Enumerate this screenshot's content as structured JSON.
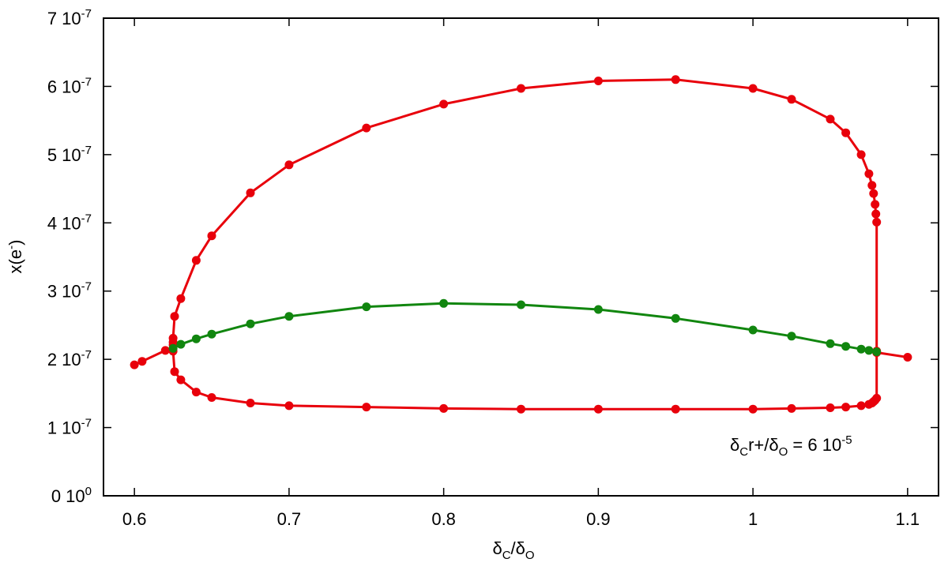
{
  "chart_data": {
    "type": "line",
    "xlabel": {
      "a": "δ",
      "a_sub": "C",
      "b": "/δ",
      "b_sub": "O"
    },
    "ylabel": {
      "text": "x(e",
      "sup": "-",
      "close": ")"
    },
    "xlim": [
      0.58,
      1.12
    ],
    "ylim": [
      0,
      7e-07
    ],
    "xticks": [
      {
        "value": 0.6,
        "label": "0.6"
      },
      {
        "value": 0.7,
        "label": "0.7"
      },
      {
        "value": 0.8,
        "label": "0.8"
      },
      {
        "value": 0.9,
        "label": "0.9"
      },
      {
        "value": 1.0,
        "label": "1"
      },
      {
        "value": 1.1,
        "label": "1.1"
      }
    ],
    "yticks": [
      {
        "value": 0,
        "mant": "0 10",
        "exp": "0"
      },
      {
        "value": 1e-07,
        "mant": "1 10",
        "exp": "-7"
      },
      {
        "value": 2e-07,
        "mant": "2 10",
        "exp": "-7"
      },
      {
        "value": 3e-07,
        "mant": "3 10",
        "exp": "-7"
      },
      {
        "value": 4e-07,
        "mant": "4 10",
        "exp": "-7"
      },
      {
        "value": 5e-07,
        "mant": "5 10",
        "exp": "-7"
      },
      {
        "value": 6e-07,
        "mant": "6 10",
        "exp": "-7"
      },
      {
        "value": 7e-07,
        "mant": "7 10",
        "exp": "-7"
      }
    ],
    "annotation": {
      "d1": "δ",
      "d1_sub": "C",
      "mid": "r+/δ",
      "d2_sub": "O",
      "eq": " = 6 10",
      "exp": "-5"
    },
    "grid": false,
    "legend": "none",
    "series": [
      {
        "color": "#e8000b",
        "points": [
          [
            0.6,
            1.92e-07
          ],
          [
            0.605,
            1.97e-07
          ],
          [
            0.62,
            2.13e-07
          ],
          [
            0.625,
            2.16e-07
          ],
          [
            0.625,
            2.21e-07
          ],
          [
            0.625,
            2.25e-07
          ],
          [
            0.625,
            2.31e-07
          ],
          [
            0.626,
            2.63e-07
          ],
          [
            0.63,
            2.89e-07
          ],
          [
            0.64,
            3.45e-07
          ],
          [
            0.65,
            3.81e-07
          ],
          [
            0.675,
            4.44e-07
          ],
          [
            0.7,
            4.85e-07
          ],
          [
            0.75,
            5.39e-07
          ],
          [
            0.8,
            5.74e-07
          ],
          [
            0.85,
            5.97e-07
          ],
          [
            0.9,
            6.08e-07
          ],
          [
            0.95,
            6.1e-07
          ],
          [
            1.0,
            5.97e-07
          ],
          [
            1.025,
            5.81e-07
          ],
          [
            1.05,
            5.52e-07
          ],
          [
            1.06,
            5.32e-07
          ],
          [
            1.07,
            5e-07
          ],
          [
            1.075,
            4.72e-07
          ],
          [
            1.077,
            4.55e-07
          ],
          [
            1.078,
            4.43e-07
          ],
          [
            1.079,
            4.27e-07
          ],
          [
            1.0795,
            4.13e-07
          ],
          [
            1.08,
            4.01e-07
          ],
          [
            1.08,
            2.12e-07
          ],
          [
            1.08,
            2.1e-07
          ],
          [
            1.1,
            2.03e-07
          ]
        ]
      },
      {
        "color": "#e8000b",
        "points": [
          [
            0.625,
            2.12e-07
          ],
          [
            0.626,
            1.82e-07
          ],
          [
            0.63,
            1.7e-07
          ],
          [
            0.64,
            1.52e-07
          ],
          [
            0.65,
            1.44e-07
          ],
          [
            0.675,
            1.36e-07
          ],
          [
            0.7,
            1.32e-07
          ],
          [
            0.75,
            1.3e-07
          ],
          [
            0.8,
            1.28e-07
          ],
          [
            0.85,
            1.27e-07
          ],
          [
            0.9,
            1.27e-07
          ],
          [
            0.95,
            1.27e-07
          ],
          [
            1.0,
            1.27e-07
          ],
          [
            1.025,
            1.28e-07
          ],
          [
            1.05,
            1.29e-07
          ],
          [
            1.06,
            1.3e-07
          ],
          [
            1.07,
            1.32e-07
          ],
          [
            1.075,
            1.34e-07
          ],
          [
            1.077,
            1.36e-07
          ],
          [
            1.078,
            1.38e-07
          ],
          [
            1.079,
            1.4e-07
          ],
          [
            1.08,
            1.43e-07
          ],
          [
            1.08,
            2.1e-07
          ]
        ]
      },
      {
        "color": "#11860f",
        "points": [
          [
            0.625,
            2.16e-07
          ],
          [
            0.63,
            2.22e-07
          ],
          [
            0.64,
            2.3e-07
          ],
          [
            0.65,
            2.37e-07
          ],
          [
            0.675,
            2.52e-07
          ],
          [
            0.7,
            2.63e-07
          ],
          [
            0.75,
            2.77e-07
          ],
          [
            0.8,
            2.82e-07
          ],
          [
            0.85,
            2.8e-07
          ],
          [
            0.9,
            2.73e-07
          ],
          [
            0.95,
            2.6e-07
          ],
          [
            1.0,
            2.43e-07
          ],
          [
            1.025,
            2.34e-07
          ],
          [
            1.05,
            2.23e-07
          ],
          [
            1.06,
            2.19e-07
          ],
          [
            1.07,
            2.15e-07
          ],
          [
            1.075,
            2.13e-07
          ],
          [
            1.08,
            2.11e-07
          ]
        ]
      }
    ]
  }
}
